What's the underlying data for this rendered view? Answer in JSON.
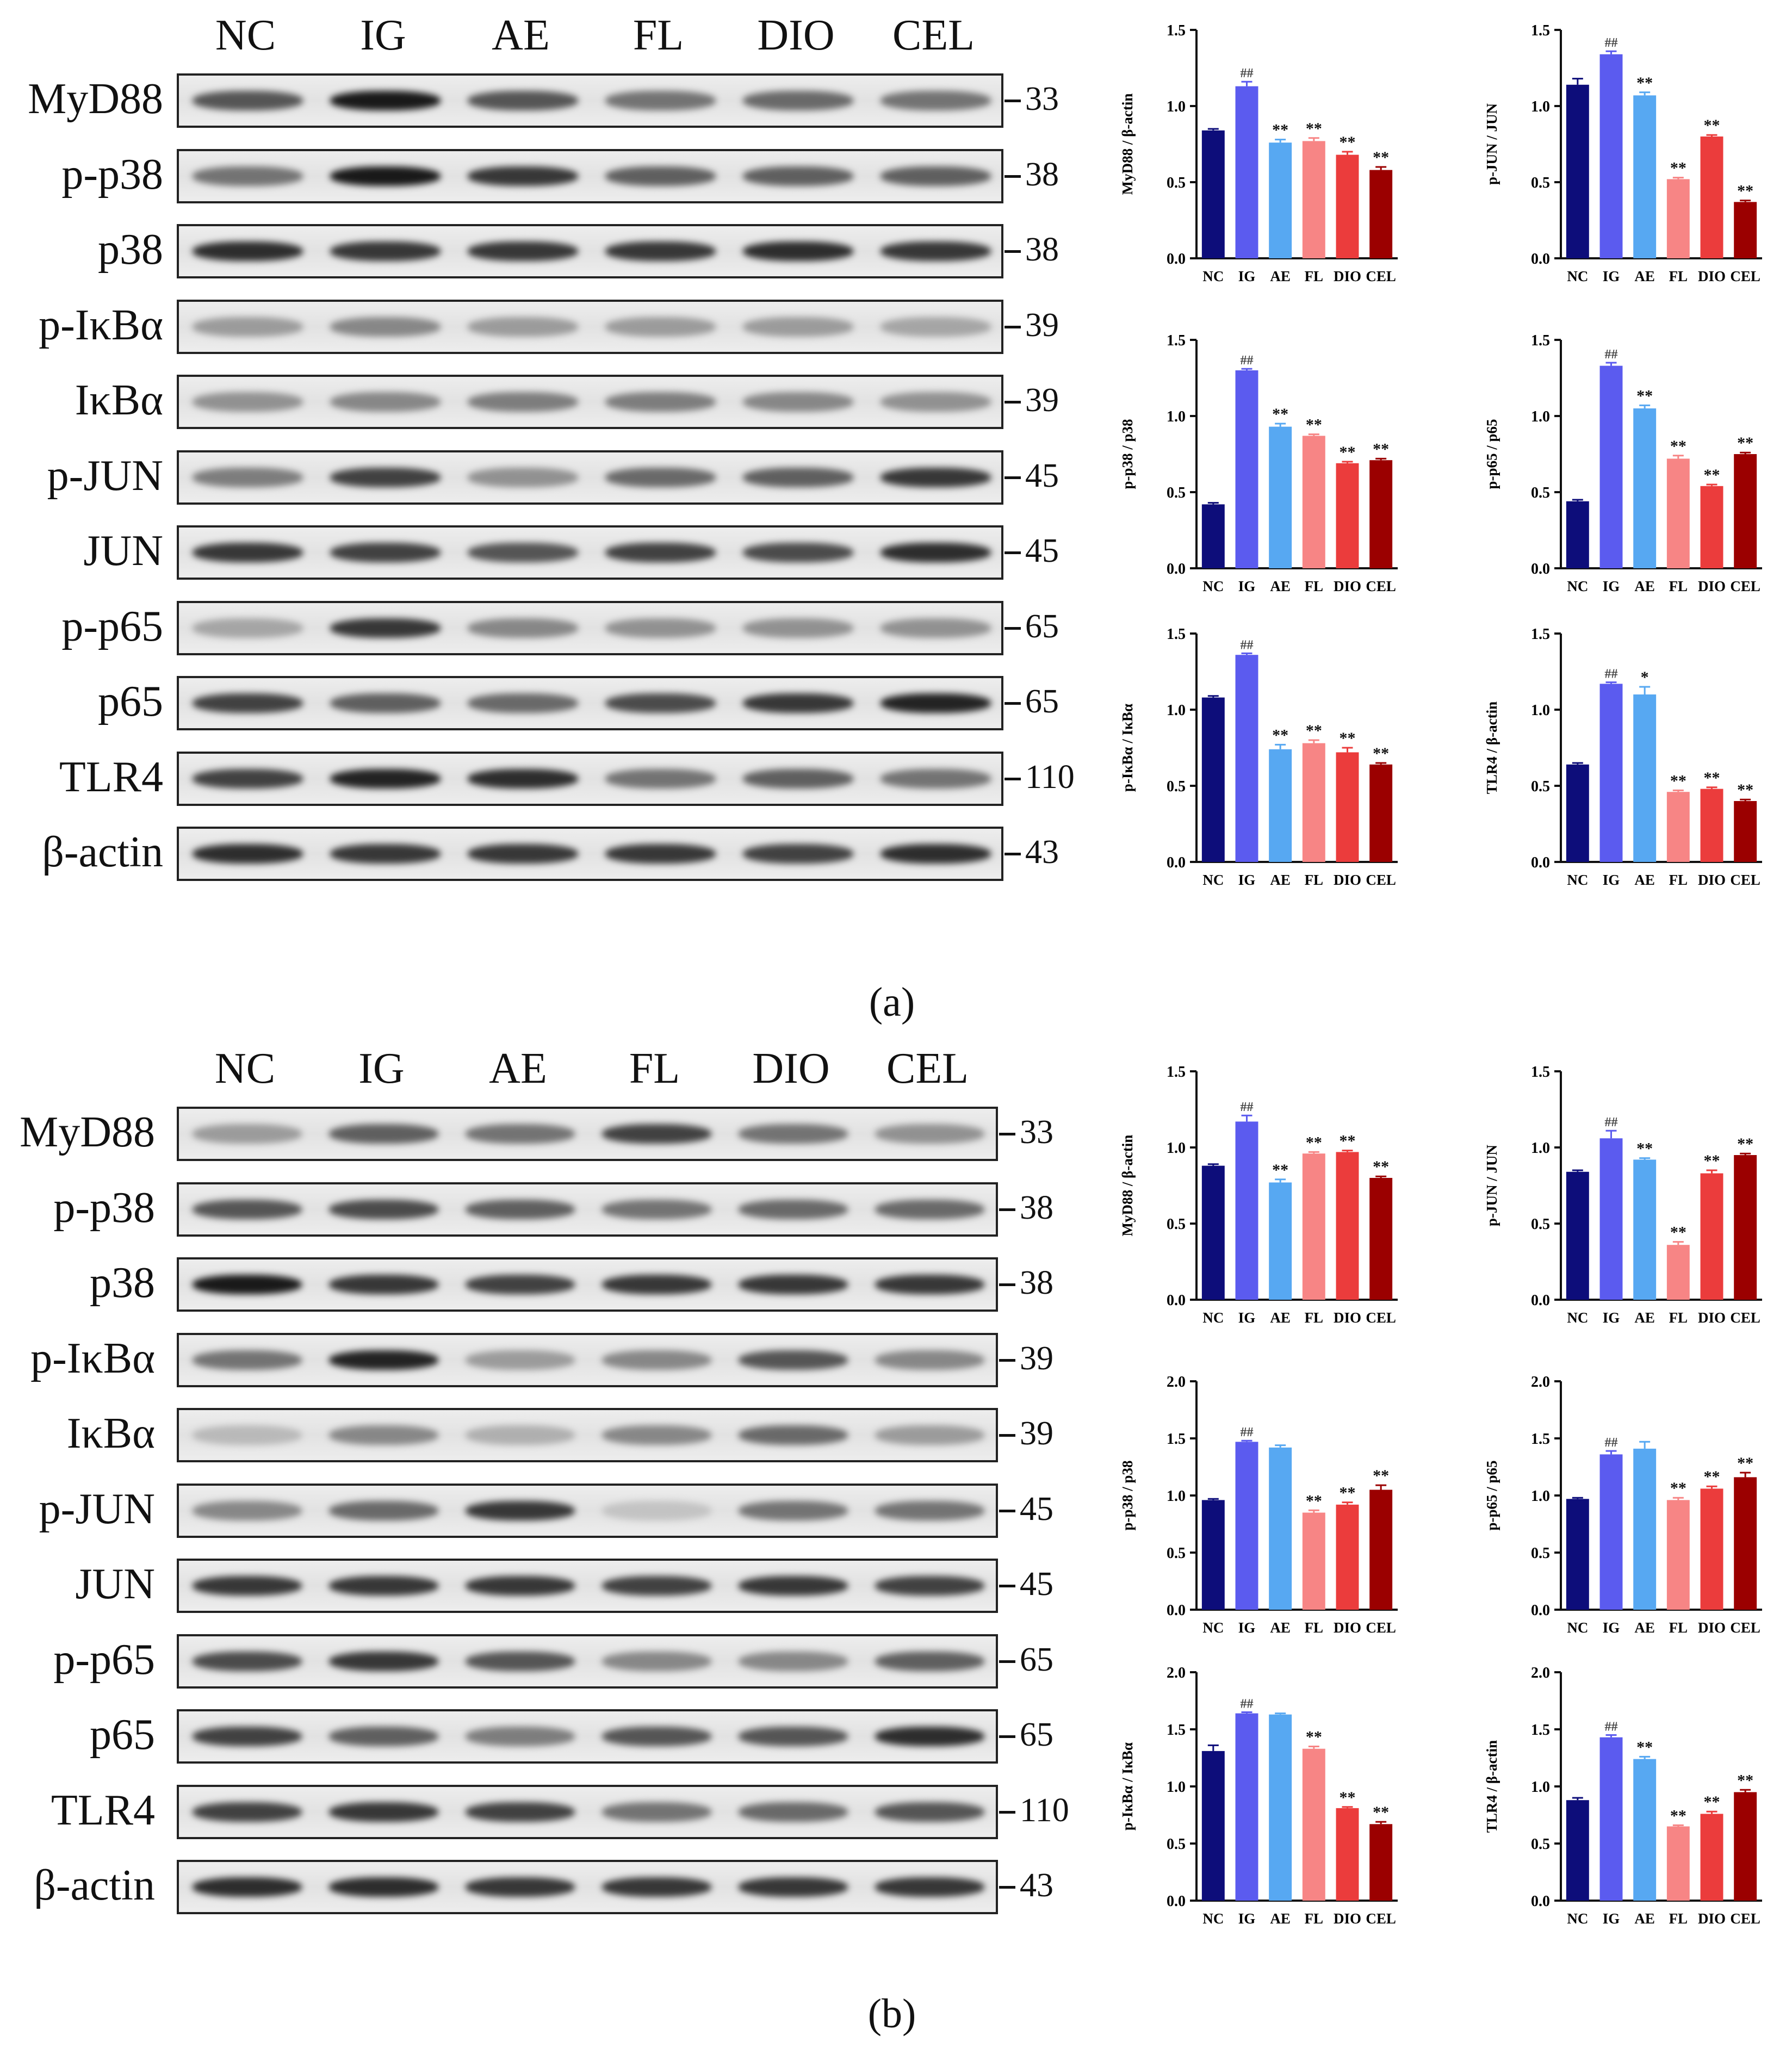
{
  "lanes": [
    "NC",
    "IG",
    "AE",
    "FL",
    "DIO",
    "CEL"
  ],
  "colors": [
    "#0d0d7a",
    "#5b5bef",
    "#57a8f2",
    "#f78585",
    "#eb3c3c",
    "#9b0000"
  ],
  "panels": [
    {
      "letter": "(a)",
      "blots": [
        {
          "label": "MyD88",
          "kda": "33",
          "intensity": [
            0.7,
            1.0,
            0.7,
            0.55,
            0.6,
            0.55
          ]
        },
        {
          "label": "p-p38",
          "kda": "38",
          "intensity": [
            0.55,
            1.0,
            0.85,
            0.65,
            0.65,
            0.65
          ]
        },
        {
          "label": "p38",
          "kda": "38",
          "intensity": [
            0.9,
            0.85,
            0.85,
            0.85,
            0.9,
            0.85
          ]
        },
        {
          "label": "p-IκBα",
          "kda": "39",
          "intensity": [
            0.35,
            0.45,
            0.35,
            0.35,
            0.35,
            0.3
          ]
        },
        {
          "label": "IκBα",
          "kda": "39",
          "intensity": [
            0.4,
            0.45,
            0.5,
            0.5,
            0.45,
            0.4
          ]
        },
        {
          "label": "p-JUN",
          "kda": "45",
          "intensity": [
            0.5,
            0.8,
            0.4,
            0.6,
            0.65,
            0.85
          ]
        },
        {
          "label": "JUN",
          "kda": "45",
          "intensity": [
            0.85,
            0.8,
            0.7,
            0.8,
            0.75,
            0.9
          ]
        },
        {
          "label": "p-p65",
          "kda": "65",
          "intensity": [
            0.3,
            0.85,
            0.45,
            0.4,
            0.4,
            0.4
          ]
        },
        {
          "label": "p65",
          "kda": "65",
          "intensity": [
            0.8,
            0.65,
            0.6,
            0.75,
            0.85,
            0.95
          ]
        },
        {
          "label": "TLR4",
          "kda": "110",
          "intensity": [
            0.8,
            0.95,
            0.9,
            0.55,
            0.65,
            0.55
          ]
        },
        {
          "label": "β-actin",
          "kda": "43",
          "intensity": [
            0.9,
            0.85,
            0.85,
            0.85,
            0.8,
            0.9
          ]
        }
      ],
      "chart_data": [
        {
          "type": "bar",
          "ylabel": "MyD88 / β-actin",
          "ylim": [
            0,
            1.5
          ],
          "yticks": [
            "0.0",
            "0.5",
            "1.0",
            "1.5"
          ],
          "categories": [
            "NC",
            "IG",
            "AE",
            "FL",
            "DIO",
            "CEL"
          ],
          "values": [
            0.84,
            1.13,
            0.76,
            0.77,
            0.68,
            0.58
          ],
          "errors": [
            0.01,
            0.03,
            0.02,
            0.02,
            0.02,
            0.02
          ],
          "annotations": [
            "",
            "##",
            "**",
            "**",
            "**",
            "**"
          ]
        },
        {
          "type": "bar",
          "ylabel": "p-JUN / JUN",
          "ylim": [
            0,
            1.5
          ],
          "yticks": [
            "0.0",
            "0.5",
            "1.0",
            "1.5"
          ],
          "categories": [
            "NC",
            "IG",
            "AE",
            "FL",
            "DIO",
            "CEL"
          ],
          "values": [
            1.14,
            1.34,
            1.07,
            0.52,
            0.8,
            0.37
          ],
          "errors": [
            0.04,
            0.02,
            0.02,
            0.01,
            0.01,
            0.01
          ],
          "annotations": [
            "",
            "##",
            "**",
            "**",
            "**",
            "**"
          ]
        },
        {
          "type": "bar",
          "ylabel": "p-p38 / p38",
          "ylim": [
            0,
            1.5
          ],
          "yticks": [
            "0.0",
            "0.5",
            "1.0",
            "1.5"
          ],
          "categories": [
            "NC",
            "IG",
            "AE",
            "FL",
            "DIO",
            "CEL"
          ],
          "values": [
            0.42,
            1.3,
            0.93,
            0.87,
            0.69,
            0.71
          ],
          "errors": [
            0.01,
            0.01,
            0.02,
            0.01,
            0.01,
            0.01
          ],
          "annotations": [
            "",
            "##",
            "**",
            "**",
            "**",
            "**"
          ]
        },
        {
          "type": "bar",
          "ylabel": "p-p65 / p65",
          "ylim": [
            0,
            1.5
          ],
          "yticks": [
            "0.0",
            "0.5",
            "1.0",
            "1.5"
          ],
          "categories": [
            "NC",
            "IG",
            "AE",
            "FL",
            "DIO",
            "CEL"
          ],
          "values": [
            0.44,
            1.33,
            1.05,
            0.72,
            0.54,
            0.75
          ],
          "errors": [
            0.01,
            0.02,
            0.02,
            0.02,
            0.01,
            0.01
          ],
          "annotations": [
            "",
            "##",
            "**",
            "**",
            "**",
            "**"
          ]
        },
        {
          "type": "bar",
          "ylabel": "p-IκBα / IκBα",
          "ylim": [
            0,
            1.5
          ],
          "yticks": [
            "0.0",
            "0.5",
            "1.0",
            "1.5"
          ],
          "categories": [
            "NC",
            "IG",
            "AE",
            "FL",
            "DIO",
            "CEL"
          ],
          "values": [
            1.08,
            1.36,
            0.74,
            0.78,
            0.72,
            0.64
          ],
          "errors": [
            0.01,
            0.01,
            0.03,
            0.02,
            0.03,
            0.01
          ],
          "annotations": [
            "",
            "##",
            "**",
            "**",
            "**",
            "**"
          ]
        },
        {
          "type": "bar",
          "ylabel": "TLR4 / β-actin",
          "ylim": [
            0,
            1.5
          ],
          "yticks": [
            "0.0",
            "0.5",
            "1.0",
            "1.5"
          ],
          "categories": [
            "NC",
            "IG",
            "AE",
            "FL",
            "DIO",
            "CEL"
          ],
          "values": [
            0.64,
            1.17,
            1.1,
            0.46,
            0.48,
            0.4
          ],
          "errors": [
            0.01,
            0.01,
            0.05,
            0.01,
            0.01,
            0.01
          ],
          "annotations": [
            "",
            "##",
            "*",
            "**",
            "**",
            "**"
          ]
        }
      ]
    },
    {
      "letter": "(b)",
      "blots": [
        {
          "label": "MyD88",
          "kda": "33",
          "intensity": [
            0.35,
            0.65,
            0.55,
            0.8,
            0.55,
            0.4
          ]
        },
        {
          "label": "p-p38",
          "kda": "38",
          "intensity": [
            0.7,
            0.75,
            0.65,
            0.55,
            0.6,
            0.6
          ]
        },
        {
          "label": "p38",
          "kda": "38",
          "intensity": [
            1.0,
            0.85,
            0.8,
            0.85,
            0.85,
            0.85
          ]
        },
        {
          "label": "p-IκBα",
          "kda": "39",
          "intensity": [
            0.55,
            0.95,
            0.35,
            0.45,
            0.7,
            0.45
          ]
        },
        {
          "label": "IκBα",
          "kda": "39",
          "intensity": [
            0.2,
            0.45,
            0.25,
            0.45,
            0.6,
            0.35
          ]
        },
        {
          "label": "p-JUN",
          "kda": "45",
          "intensity": [
            0.45,
            0.6,
            0.85,
            0.15,
            0.55,
            0.55
          ]
        },
        {
          "label": "JUN",
          "kda": "45",
          "intensity": [
            0.85,
            0.85,
            0.85,
            0.8,
            0.85,
            0.8
          ]
        },
        {
          "label": "p-p65",
          "kda": "65",
          "intensity": [
            0.75,
            0.85,
            0.7,
            0.45,
            0.45,
            0.65
          ]
        },
        {
          "label": "p65",
          "kda": "65",
          "intensity": [
            0.8,
            0.65,
            0.5,
            0.7,
            0.7,
            0.9
          ]
        },
        {
          "label": "TLR4",
          "kda": "110",
          "intensity": [
            0.8,
            0.85,
            0.8,
            0.55,
            0.6,
            0.7
          ]
        },
        {
          "label": "β-actin",
          "kda": "43",
          "intensity": [
            0.9,
            0.9,
            0.85,
            0.85,
            0.85,
            0.85
          ]
        }
      ],
      "chart_data": [
        {
          "type": "bar",
          "ylabel": "MyD88 / β-actin",
          "ylim": [
            0,
            1.5
          ],
          "yticks": [
            "0.0",
            "0.5",
            "1.0",
            "1.5"
          ],
          "categories": [
            "NC",
            "IG",
            "AE",
            "FL",
            "DIO",
            "CEL"
          ],
          "values": [
            0.88,
            1.17,
            0.77,
            0.96,
            0.97,
            0.8
          ],
          "errors": [
            0.01,
            0.04,
            0.02,
            0.01,
            0.01,
            0.01
          ],
          "annotations": [
            "",
            "##",
            "**",
            "**",
            "**",
            "**"
          ]
        },
        {
          "type": "bar",
          "ylabel": "p-JUN / JUN",
          "ylim": [
            0,
            1.5
          ],
          "yticks": [
            "0.0",
            "0.5",
            "1.0",
            "1.5"
          ],
          "categories": [
            "NC",
            "IG",
            "AE",
            "FL",
            "DIO",
            "CEL"
          ],
          "values": [
            0.84,
            1.06,
            0.92,
            0.36,
            0.83,
            0.95
          ],
          "errors": [
            0.01,
            0.05,
            0.01,
            0.02,
            0.02,
            0.01
          ],
          "annotations": [
            "",
            "##",
            "**",
            "**",
            "**",
            "**"
          ]
        },
        {
          "type": "bar",
          "ylabel": "p-p38 / p38",
          "ylim": [
            0,
            2.0
          ],
          "yticks": [
            "0.0",
            "0.5",
            "1.0",
            "1.5",
            "2.0"
          ],
          "categories": [
            "NC",
            "IG",
            "AE",
            "FL",
            "DIO",
            "CEL"
          ],
          "values": [
            0.96,
            1.47,
            1.42,
            0.85,
            0.92,
            1.05
          ],
          "errors": [
            0.01,
            0.01,
            0.02,
            0.02,
            0.02,
            0.04
          ],
          "annotations": [
            "",
            "##",
            "",
            "**",
            "**",
            "**"
          ]
        },
        {
          "type": "bar",
          "ylabel": "p-p65 / p65",
          "ylim": [
            0,
            2.0
          ],
          "yticks": [
            "0.0",
            "0.5",
            "1.0",
            "1.5",
            "2.0"
          ],
          "categories": [
            "NC",
            "IG",
            "AE",
            "FL",
            "DIO",
            "CEL"
          ],
          "values": [
            0.97,
            1.36,
            1.41,
            0.96,
            1.06,
            1.16
          ],
          "errors": [
            0.01,
            0.03,
            0.06,
            0.02,
            0.02,
            0.04
          ],
          "annotations": [
            "",
            "##",
            "",
            "**",
            "**",
            "**"
          ]
        },
        {
          "type": "bar",
          "ylabel": "p-IκBα / IκBα",
          "ylim": [
            0,
            2.0
          ],
          "yticks": [
            "0.0",
            "0.5",
            "1.0",
            "1.5",
            "2.0"
          ],
          "categories": [
            "NC",
            "IG",
            "AE",
            "FL",
            "DIO",
            "CEL"
          ],
          "values": [
            1.31,
            1.64,
            1.63,
            1.33,
            0.81,
            0.67
          ],
          "errors": [
            0.05,
            0.01,
            0.01,
            0.02,
            0.01,
            0.02
          ],
          "annotations": [
            "",
            "##",
            "",
            "**",
            "**",
            "**"
          ]
        },
        {
          "type": "bar",
          "ylabel": "TLR4 / β-actin",
          "ylim": [
            0,
            2.0
          ],
          "yticks": [
            "0.0",
            "0.5",
            "1.0",
            "1.5",
            "2.0"
          ],
          "categories": [
            "NC",
            "IG",
            "AE",
            "FL",
            "DIO",
            "CEL"
          ],
          "values": [
            0.88,
            1.43,
            1.24,
            0.65,
            0.76,
            0.95
          ],
          "errors": [
            0.02,
            0.02,
            0.02,
            0.01,
            0.02,
            0.02
          ],
          "annotations": [
            "",
            "##",
            "**",
            "**",
            "**",
            "**"
          ]
        }
      ]
    }
  ]
}
